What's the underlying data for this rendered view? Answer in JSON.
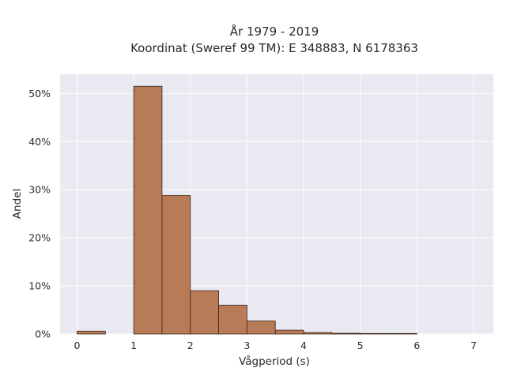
{
  "chart_data": {
    "type": "bar",
    "title_lines": [
      "År 1979 - 2019",
      "Koordinat (Sweref 99 TM): E 348883, N 6178363"
    ],
    "xlabel": "Vågperiod (s)",
    "ylabel": "Andel",
    "xlim": [
      -0.3,
      7.35
    ],
    "ylim": [
      0,
      54
    ],
    "xticks": [
      0,
      1,
      2,
      3,
      4,
      5,
      6,
      7
    ],
    "xtick_labels": [
      "0",
      "1",
      "2",
      "3",
      "4",
      "5",
      "6",
      "7"
    ],
    "yticks": [
      0,
      10,
      20,
      30,
      40,
      50
    ],
    "ytick_labels": [
      "0%",
      "10%",
      "20%",
      "30%",
      "40%",
      "50%"
    ],
    "grid": true,
    "bin_width": 0.5,
    "bins": [
      {
        "x0": 0.0,
        "value": 0.6
      },
      {
        "x0": 1.0,
        "value": 51.5
      },
      {
        "x0": 1.5,
        "value": 28.8
      },
      {
        "x0": 2.0,
        "value": 9.0
      },
      {
        "x0": 2.5,
        "value": 6.0
      },
      {
        "x0": 3.0,
        "value": 2.7
      },
      {
        "x0": 3.5,
        "value": 0.8
      },
      {
        "x0": 4.0,
        "value": 0.3
      },
      {
        "x0": 4.5,
        "value": 0.15
      },
      {
        "x0": 5.0,
        "value": 0.1
      },
      {
        "x0": 5.5,
        "value": 0.1
      }
    ],
    "colors": {
      "bar": "#b87b57",
      "bar_edge": "#3a2518",
      "plot_bg": "#e9e9f1",
      "grid": "#ffffff"
    }
  }
}
